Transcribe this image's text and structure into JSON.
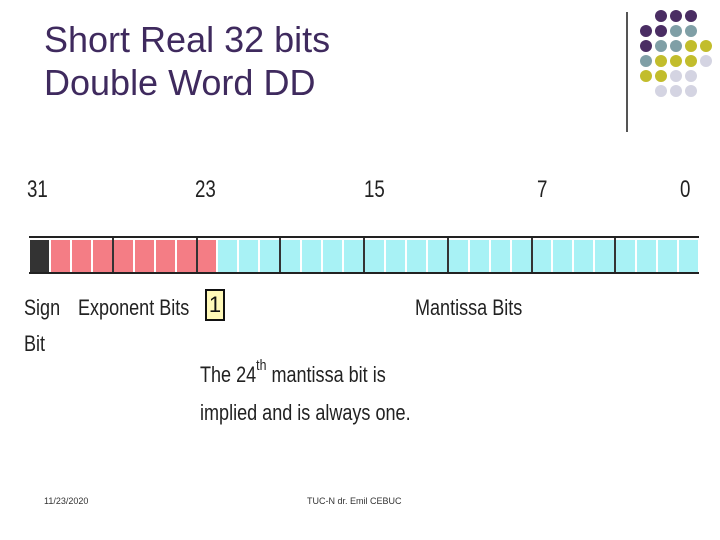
{
  "title": {
    "line1": "Short Real 32 bits",
    "line2": "Double Word DD"
  },
  "colors": {
    "title": "#3f2a5e",
    "sign_bit": "#333333",
    "exponent_bits": "#f47d85",
    "mantissa_bits": "#a8f2f5",
    "implied_box": "#fff9b8",
    "dot_purple": "#4a2d63",
    "dot_teal": "#7f9fa6",
    "dot_olive": "#c2bd2c",
    "dot_lavender": "#d4d4e2"
  },
  "diagram": {
    "bit_positions": [
      "31",
      "23",
      "15",
      "7",
      "0"
    ],
    "sign_label_line1": "Sign",
    "sign_label_line2": "Bit",
    "exponent_label": "Exponent Bits",
    "implied_bit_value": "1",
    "mantissa_label": "Mantissa Bits",
    "note_pre": "The 24",
    "note_sup": "th",
    "note_post": " mantissa bit is",
    "note_line2": "implied and is always one."
  },
  "footer": {
    "date": "11/23/2020",
    "author": "TUC-N dr. Emil CEBUC"
  }
}
